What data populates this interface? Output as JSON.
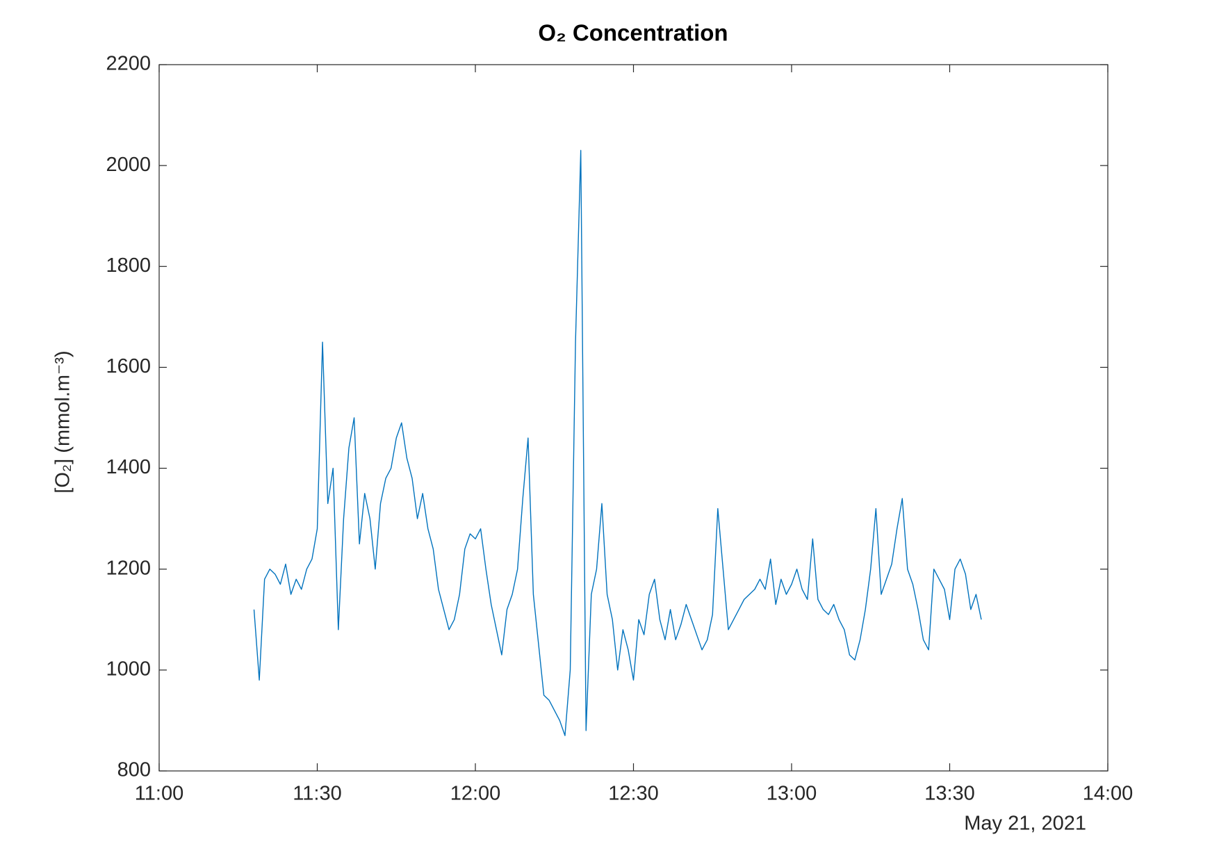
{
  "chart_data": {
    "type": "line",
    "title": "O₂ Concentration",
    "y_label": "[O₂] (mmol.m⁻³)",
    "x_date_label": "May 21, 2021",
    "xlim": [
      "11:00",
      "14:00"
    ],
    "xticks": [
      "11:00",
      "11:30",
      "12:00",
      "12:30",
      "13:00",
      "13:30",
      "14:00"
    ],
    "ylim": [
      800,
      2200
    ],
    "yticks": [
      800,
      1000,
      1200,
      1400,
      1600,
      1800,
      2000,
      2200
    ],
    "grid": false,
    "x": [
      "11:18",
      "11:19",
      "11:20",
      "11:21",
      "11:22",
      "11:23",
      "11:24",
      "11:25",
      "11:26",
      "11:27",
      "11:28",
      "11:29",
      "11:30",
      "11:31",
      "11:32",
      "11:33",
      "11:34",
      "11:35",
      "11:36",
      "11:37",
      "11:38",
      "11:39",
      "11:40",
      "11:41",
      "11:42",
      "11:43",
      "11:44",
      "11:45",
      "11:46",
      "11:47",
      "11:48",
      "11:49",
      "11:50",
      "11:51",
      "11:52",
      "11:53",
      "11:54",
      "11:55",
      "11:56",
      "11:57",
      "11:58",
      "11:59",
      "12:00",
      "12:01",
      "12:02",
      "12:03",
      "12:04",
      "12:05",
      "12:06",
      "12:07",
      "12:08",
      "12:09",
      "12:10",
      "12:11",
      "12:12",
      "12:13",
      "12:14",
      "12:15",
      "12:16",
      "12:17",
      "12:18",
      "12:19",
      "12:20",
      "12:21",
      "12:22",
      "12:23",
      "12:24",
      "12:25",
      "12:26",
      "12:27",
      "12:28",
      "12:29",
      "12:30",
      "12:31",
      "12:32",
      "12:33",
      "12:34",
      "12:35",
      "12:36",
      "12:37",
      "12:38",
      "12:39",
      "12:40",
      "12:41",
      "12:42",
      "12:43",
      "12:44",
      "12:45",
      "12:46",
      "12:47",
      "12:48",
      "12:49",
      "12:50",
      "12:51",
      "12:52",
      "12:53",
      "12:54",
      "12:55",
      "12:56",
      "12:57",
      "12:58",
      "12:59",
      "13:00",
      "13:01",
      "13:02",
      "13:03",
      "13:04",
      "13:05",
      "13:06",
      "13:07",
      "13:08",
      "13:09",
      "13:10",
      "13:11",
      "13:12",
      "13:13",
      "13:14",
      "13:15",
      "13:16",
      "13:17",
      "13:18",
      "13:19",
      "13:20",
      "13:21",
      "13:22",
      "13:23",
      "13:24",
      "13:25",
      "13:26",
      "13:27",
      "13:28",
      "13:29",
      "13:30",
      "13:31",
      "13:32",
      "13:33",
      "13:34",
      "13:35",
      "13:36"
    ],
    "series": [
      {
        "name": "O2",
        "color": "#0072bd",
        "values": [
          1120,
          980,
          1180,
          1200,
          1190,
          1170,
          1210,
          1150,
          1180,
          1160,
          1200,
          1220,
          1280,
          1650,
          1330,
          1400,
          1080,
          1300,
          1440,
          1500,
          1250,
          1350,
          1300,
          1200,
          1330,
          1380,
          1400,
          1460,
          1490,
          1420,
          1380,
          1300,
          1350,
          1280,
          1240,
          1160,
          1120,
          1080,
          1100,
          1150,
          1240,
          1270,
          1260,
          1280,
          1200,
          1130,
          1080,
          1030,
          1120,
          1150,
          1200,
          1340,
          1460,
          1150,
          1050,
          950,
          940,
          920,
          900,
          870,
          1000,
          1650,
          2030,
          880,
          1150,
          1200,
          1330,
          1150,
          1100,
          1000,
          1080,
          1040,
          980,
          1100,
          1070,
          1150,
          1180,
          1100,
          1060,
          1120,
          1060,
          1090,
          1130,
          1100,
          1070,
          1040,
          1060,
          1110,
          1320,
          1200,
          1080,
          1100,
          1120,
          1140,
          1150,
          1160,
          1180,
          1160,
          1220,
          1130,
          1180,
          1150,
          1170,
          1200,
          1160,
          1140,
          1260,
          1140,
          1120,
          1110,
          1130,
          1100,
          1080,
          1030,
          1020,
          1060,
          1120,
          1200,
          1320,
          1150,
          1180,
          1210,
          1280,
          1340,
          1200,
          1170,
          1120,
          1060,
          1040,
          1200,
          1180,
          1160,
          1100,
          1200,
          1220,
          1190,
          1120,
          1150,
          1100
        ]
      }
    ]
  }
}
